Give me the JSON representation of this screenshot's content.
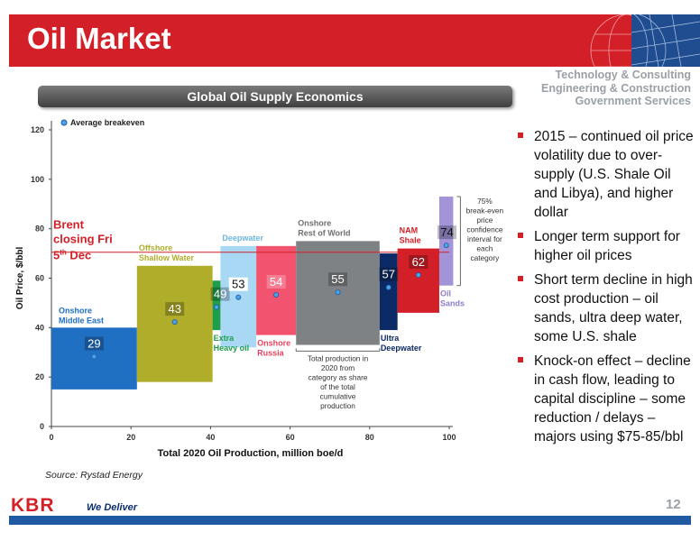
{
  "header": {
    "title": "Oil Market",
    "services": [
      "Technology & Consulting",
      "Engineering & Construction",
      "Government Services"
    ]
  },
  "panel": {
    "title": "Global Oil Supply Economics"
  },
  "chart_data": {
    "type": "bar",
    "variant": "supply-cost-curve",
    "xlabel": "Total 2020 Oil Production, million boe/d",
    "ylabel": "Oil Price, $/bbl",
    "xlim": [
      0,
      100
    ],
    "ylim": [
      0,
      120
    ],
    "xticks": [
      "0",
      "20",
      "40",
      "60",
      "80",
      "100"
    ],
    "yticks": [
      "0",
      "20",
      "40",
      "60",
      "80",
      "100",
      "120"
    ],
    "legend": {
      "label": "Average breakeven",
      "placement": "top-left"
    },
    "grid": false,
    "brent": {
      "value": 70.5,
      "label_line1": "Brent",
      "label_line2": "closing Fri",
      "label_line3_pre": "5",
      "label_line3_sup": "th",
      "label_line3_post": " Dec",
      "color": "#d31f27"
    },
    "series": [
      {
        "name_lines": [
          "Onshore",
          "Middle East"
        ],
        "x_start": 0,
        "x_end": 21.5,
        "y_low": 15,
        "y_high": 40,
        "breakeven": 29,
        "color": "#1f6fc3",
        "label_color": "#1f6fc3",
        "label_pos": "above-left"
      },
      {
        "name_lines": [
          "Offshore",
          "Shallow Water"
        ],
        "x_start": 21.5,
        "x_end": 40.5,
        "y_low": 18,
        "y_high": 65,
        "breakeven": 43,
        "color": "#b0ad2a",
        "label_color": "#b0ad2a",
        "label_pos": "above-left"
      },
      {
        "name_lines": [
          "Extra",
          "Heavy oil"
        ],
        "x_start": 40.5,
        "x_end": 42.5,
        "y_low": 39,
        "y_high": 59,
        "breakeven": 49,
        "color": "#1e9e4a",
        "label_color": "#1e9e4a",
        "label_pos": "below-left"
      },
      {
        "name_lines": [
          "Deepwater"
        ],
        "x_start": 42.5,
        "x_end": 51.5,
        "y_low": 32,
        "y_high": 73,
        "breakeven": 53,
        "color": "#a9d8f5",
        "label_color": "#6cb6e3",
        "label_pos": "above-left"
      },
      {
        "name_lines": [
          "Onshore",
          "Russia"
        ],
        "x_start": 51.5,
        "x_end": 61.5,
        "y_low": 37,
        "y_high": 73,
        "breakeven": 54,
        "color": "#f2536e",
        "label_color": "#e8445f",
        "label_pos": "below-left"
      },
      {
        "name_lines": [
          "Onshore",
          "Rest of World"
        ],
        "x_start": 61.5,
        "x_end": 82.5,
        "y_low": 33,
        "y_high": 75,
        "breakeven": 55,
        "color": "#7f8285",
        "label_color": "#6d6f72",
        "label_pos": "above-left"
      },
      {
        "name_lines": [
          "Ultra",
          "Deepwater"
        ],
        "x_start": 82.5,
        "x_end": 87,
        "y_low": 39,
        "y_high": 70,
        "breakeven": 57,
        "color": "#0c2a66",
        "label_color": "#0c2a66",
        "label_pos": "below-left"
      },
      {
        "name_lines": [
          "NAM",
          "Shale"
        ],
        "x_start": 87,
        "x_end": 97.5,
        "y_low": 46,
        "y_high": 72,
        "breakeven": 62,
        "color": "#d31f27",
        "label_color": "#d31f27",
        "label_pos": "above-left"
      },
      {
        "name_lines": [
          "Oil",
          "Sands"
        ],
        "x_start": 97.5,
        "x_end": 101,
        "y_low": 57,
        "y_high": 93,
        "breakeven": 74,
        "color": "#a394d8",
        "label_color": "#8b7fcc",
        "label_pos": "below-right"
      }
    ],
    "annotations": {
      "confidence": [
        "75%",
        "break-even",
        "price",
        "confidence",
        "interval for",
        "each",
        "category"
      ],
      "production": [
        "Total production in",
        "2020 from",
        "category as share",
        "of the total",
        "cumulative",
        "production"
      ]
    }
  },
  "bullets": [
    "2015 – continued oil price volatility due to over-supply (U.S. Shale Oil and Libya), and higher dollar",
    "Longer term support for higher oil prices",
    "Short term decline in high cost production – oil sands, ultra deep water, some U.S. shale",
    "Knock-on effect – decline in cash flow, leading to capital discipline – some reduction / delays – majors using $75-85/bbl"
  ],
  "footer": {
    "source": "Source: Rystad Energy",
    "logo": "KBR",
    "tagline": "We Deliver",
    "page": "12"
  }
}
